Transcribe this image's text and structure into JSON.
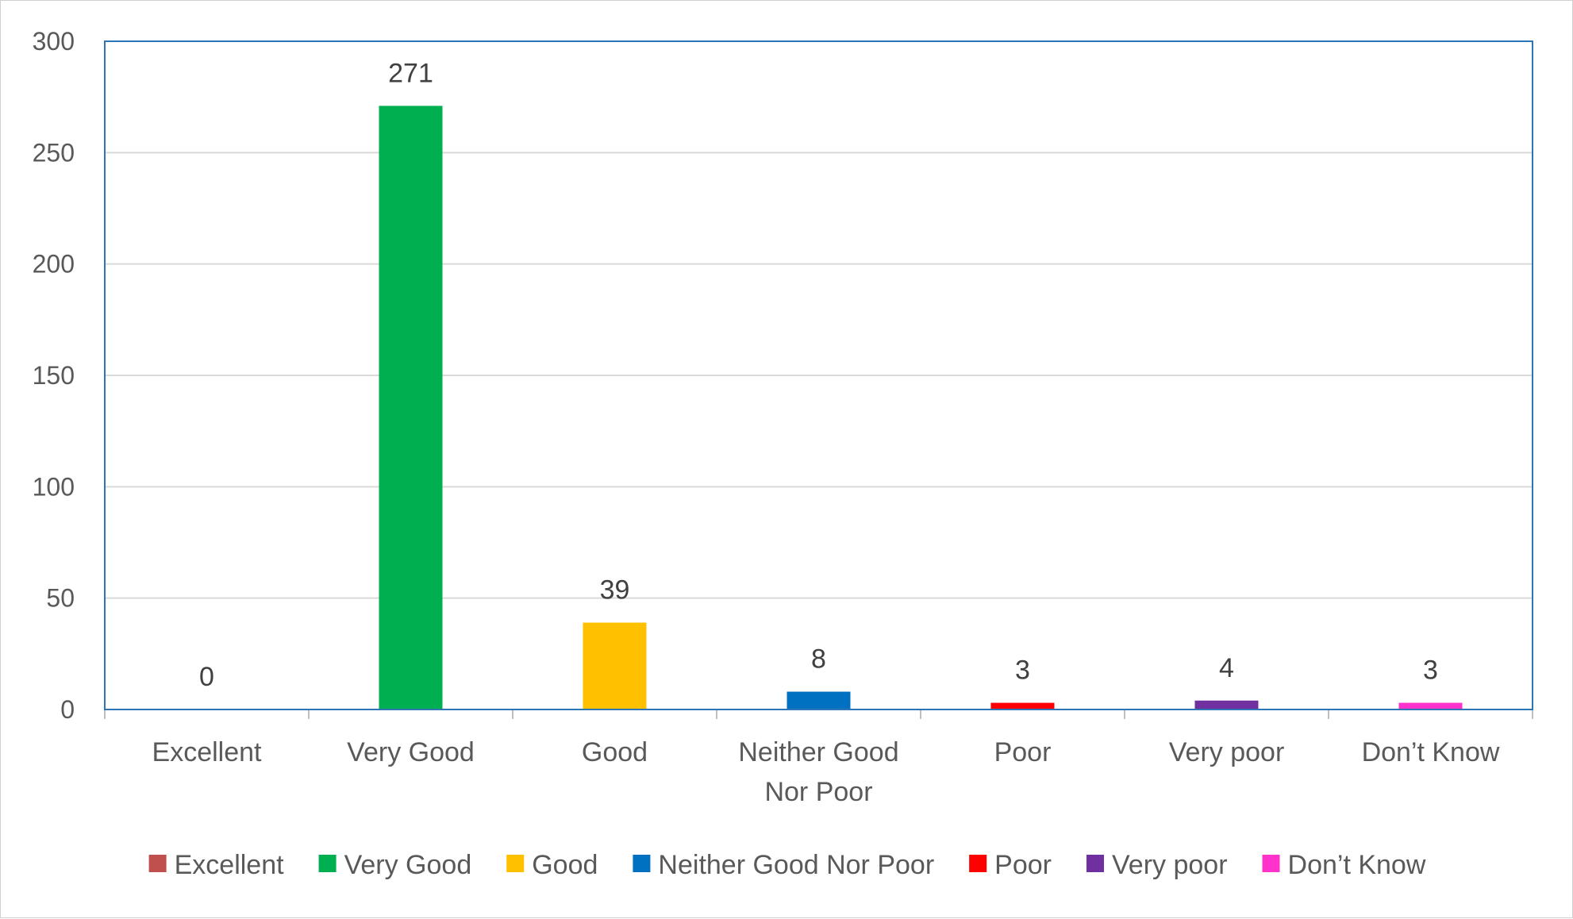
{
  "chart_data": {
    "type": "bar",
    "categories": [
      "Excellent",
      "Very Good",
      "Good",
      "Neither Good Nor Poor",
      "Poor",
      "Very poor",
      "Don’t Know"
    ],
    "category_label_lines": [
      [
        "Excellent"
      ],
      [
        "Very Good"
      ],
      [
        "Good"
      ],
      [
        "Neither Good",
        "Nor Poor"
      ],
      [
        "Poor"
      ],
      [
        "Very poor"
      ],
      [
        "Don’t Know"
      ]
    ],
    "values": [
      0,
      271,
      39,
      8,
      3,
      4,
      3
    ],
    "colors": [
      "#C0504D",
      "#00B050",
      "#FFC000",
      "#0070C0",
      "#FF0000",
      "#7030A0",
      "#FF33CC"
    ],
    "yticks": [
      0,
      50,
      100,
      150,
      200,
      250,
      300
    ],
    "ylim": [
      0,
      300
    ],
    "title": "",
    "xlabel": "",
    "ylabel": "",
    "grid": true,
    "data_labels": true,
    "legend": {
      "position": "bottom",
      "entries": [
        "Excellent",
        "Very Good",
        "Good",
        "Neither Good Nor Poor",
        "Poor",
        "Very poor",
        "Don’t Know"
      ]
    },
    "plot_border_color": "#2E75B6",
    "gridline_color": "#D9D9D9"
  }
}
